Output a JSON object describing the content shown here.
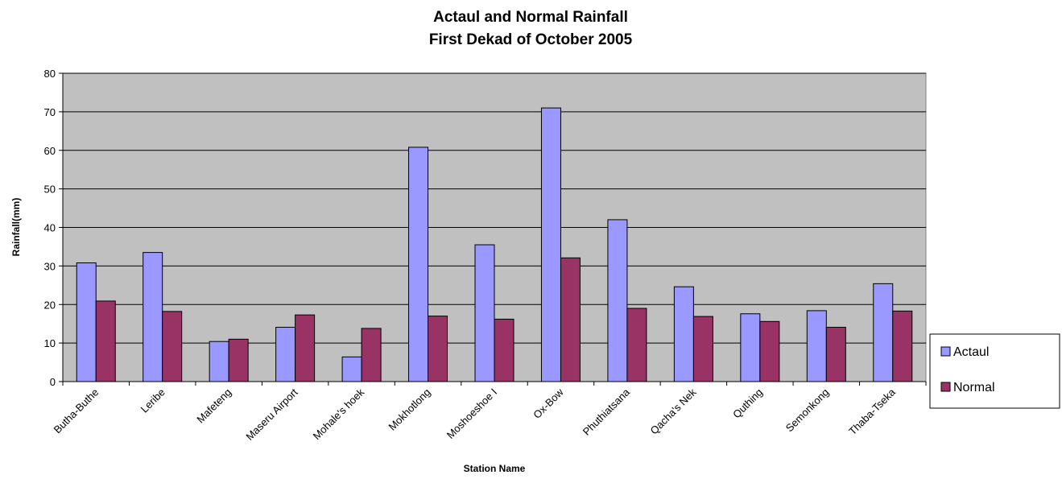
{
  "chart_data": {
    "type": "bar",
    "title": "Actaul and Normal Rainfall",
    "subtitle": "First Dekad of October 2005",
    "xlabel": "Station Name",
    "ylabel": "Rainfall(mm)",
    "ylim": [
      0,
      80
    ],
    "yticks": [
      0,
      10,
      20,
      30,
      40,
      50,
      60,
      70,
      80
    ],
    "grid": true,
    "legend_position": "right",
    "categories": [
      "Butha-Buthe",
      "Leribe",
      "Mafeteng",
      "Maseru Airport",
      "Mohale's hoek",
      "Mokhotlong",
      "Moshoeshoe I",
      "Ox-Bow",
      "Phuthiatsana",
      "Qacha's Nek",
      "Quthing",
      "Semonkong",
      "Thaba-Tseka"
    ],
    "series": [
      {
        "name": "Actaul",
        "color": "#9999ff",
        "values": [
          30.8,
          33.5,
          10.4,
          14.1,
          6.4,
          60.8,
          35.5,
          71.0,
          42.0,
          24.6,
          17.6,
          18.4,
          25.4
        ]
      },
      {
        "name": "Normal",
        "color": "#993366",
        "values": [
          20.9,
          18.2,
          11.0,
          17.3,
          13.8,
          17.0,
          16.2,
          32.1,
          19.0,
          16.9,
          15.6,
          14.1,
          18.3
        ]
      }
    ],
    "plot_background": "#c0c0c0"
  }
}
